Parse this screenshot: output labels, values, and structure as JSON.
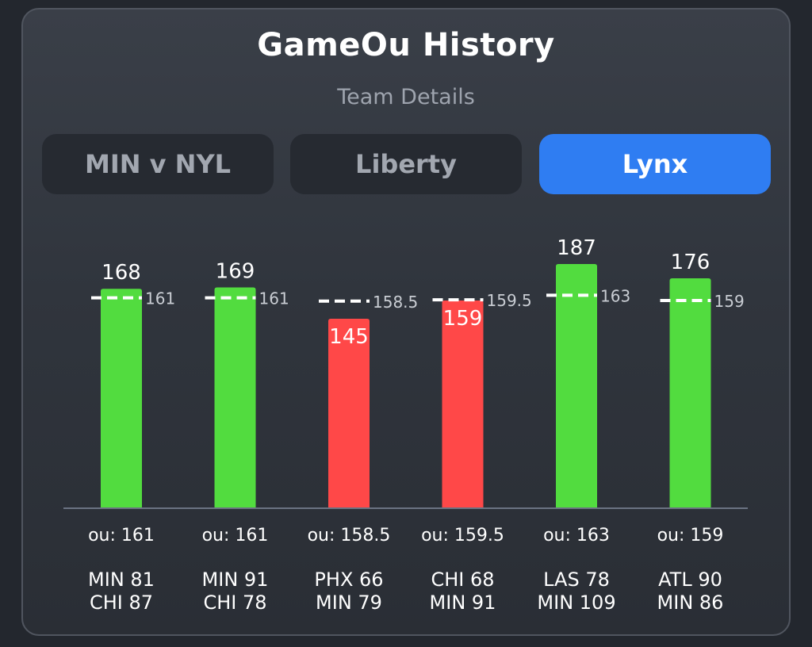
{
  "header": {
    "title": "GameOu History",
    "subtitle": "Team Details"
  },
  "tabs": [
    {
      "label": "MIN v NYL",
      "active": false
    },
    {
      "label": "Liberty",
      "active": false
    },
    {
      "label": "Lynx",
      "active": true
    }
  ],
  "colors": {
    "over": "#52dc3f",
    "under": "#ff4848",
    "active_tab": "#2f7df2"
  },
  "chart_data": {
    "type": "bar",
    "categories": [
      "MIN 81 / CHI 87",
      "MIN 91 / CHI 78",
      "PHX 66 / MIN 79",
      "CHI 68 / MIN 91",
      "LAS 78 / MIN 109",
      "ATL 90 / MIN 86"
    ],
    "values": [
      168,
      169,
      145,
      159,
      187,
      176
    ],
    "lines": [
      161,
      161,
      158.5,
      159.5,
      163,
      159
    ],
    "value_labels": [
      "168",
      "169",
      "145",
      "159",
      "187",
      "176"
    ],
    "line_labels": [
      "161",
      "161",
      "158.5",
      "159.5",
      "163",
      "159"
    ],
    "ou_labels": [
      "ou: 161",
      "ou: 161",
      "ou: 158.5",
      "ou: 159.5",
      "ou: 163",
      "ou: 159"
    ],
    "scores": [
      [
        "MIN 81",
        "CHI 87"
      ],
      [
        "MIN 91",
        "CHI 78"
      ],
      [
        "PHX 66",
        "MIN 79"
      ],
      [
        "CHI 68",
        "MIN 91"
      ],
      [
        "LAS 78",
        "MIN 109"
      ],
      [
        "ATL 90",
        "MIN 86"
      ]
    ],
    "results": [
      "over",
      "over",
      "under",
      "under",
      "over",
      "over"
    ],
    "ylim": [
      0,
      187
    ]
  }
}
